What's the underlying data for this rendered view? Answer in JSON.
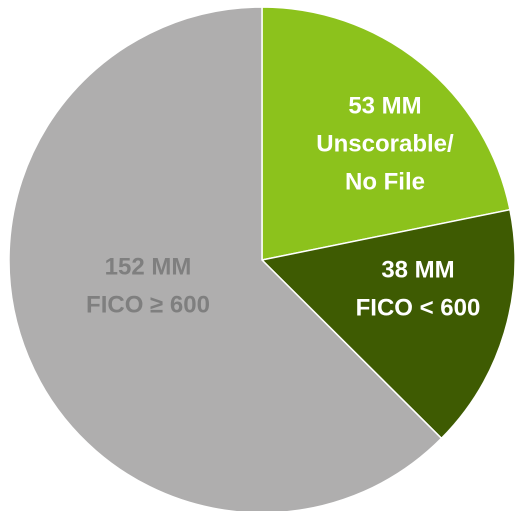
{
  "chart_data": {
    "type": "pie",
    "categories": [
      [
        "Unscorable/",
        "No File"
      ],
      [
        "FICO < 600"
      ],
      [
        "FICO ≥ 600"
      ]
    ],
    "values": [
      53,
      38,
      152
    ],
    "value_labels": [
      "53 MM",
      "38 MM",
      "152 MM"
    ],
    "colors": [
      "#8cc21c",
      "#3e5b02",
      "#afaeae"
    ],
    "label_colors": [
      "#ffffff",
      "#ffffff",
      "#7f7f7f"
    ]
  }
}
